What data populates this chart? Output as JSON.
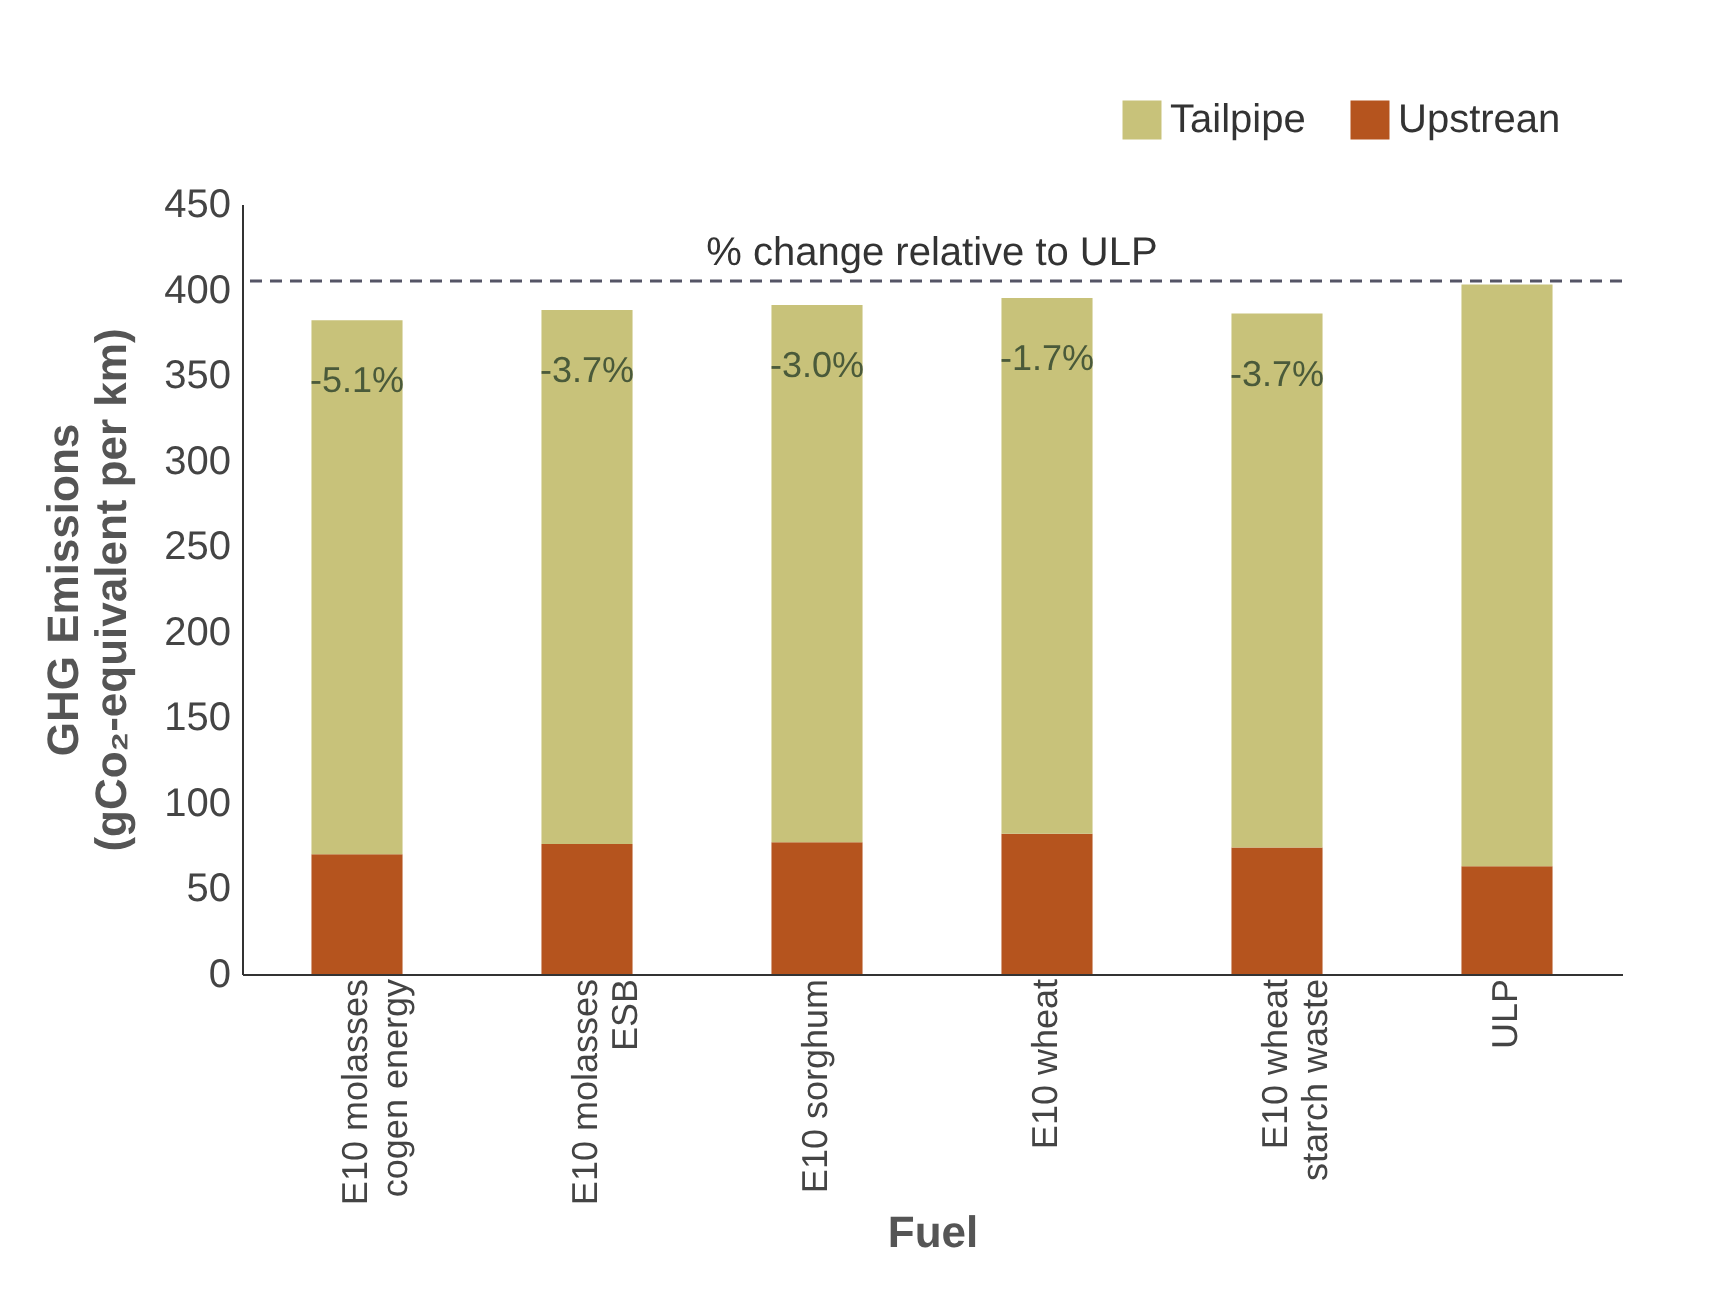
{
  "chart_data": {
    "type": "bar",
    "stacked": true,
    "xlabel": "Fuel",
    "ylabel": "GHG Emissions\n(gCo₂-equivalent per km)",
    "categories": [
      "E10 molasses\ncogen energy",
      "E10 molasses\nESB",
      "E10 sorghum",
      "E10 wheat",
      "E10 wheat\nstarch waste",
      "ULP"
    ],
    "series": [
      {
        "name": "Upstrean",
        "color": "#b5541e",
        "values": [
          70,
          76,
          77,
          82,
          74,
          63
        ]
      },
      {
        "name": "Tailpipe",
        "color": "#c8c27a",
        "values": [
          312,
          312,
          314,
          313,
          312,
          340
        ]
      }
    ],
    "ylim": [
      0,
      450
    ],
    "yticks": [
      0,
      50,
      100,
      150,
      200,
      250,
      300,
      350,
      400,
      450
    ],
    "grid": false,
    "legend": "top right",
    "ref_lines": [
      {
        "axis": "y",
        "value": 405,
        "label": "% change relative to ULP",
        "color": "#555566",
        "line_style": "dashed"
      }
    ],
    "annotations": [
      "-5.1%",
      "-3.7%",
      "-3.0%",
      "-1.7%",
      "-3.7%"
    ]
  }
}
